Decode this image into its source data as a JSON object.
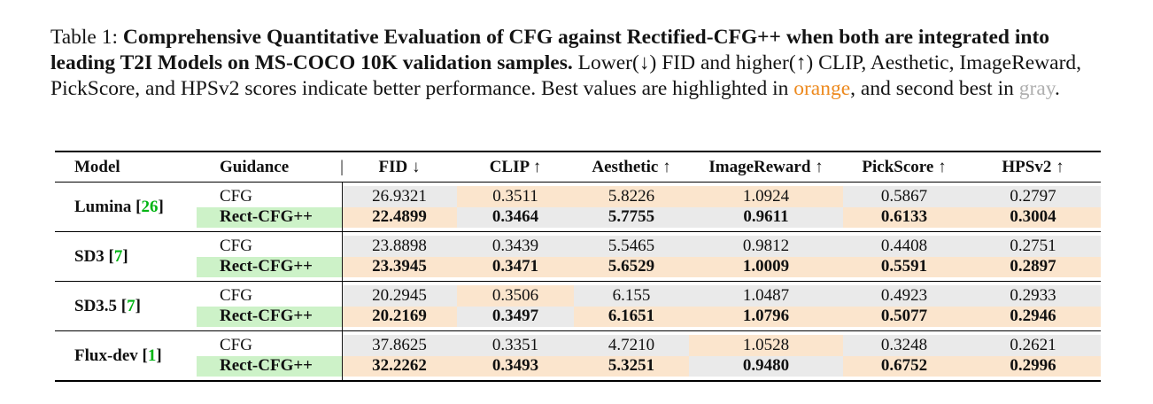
{
  "colors": {
    "best_bg": "#FBE5CD",
    "second_bg": "#EAEAEA",
    "guidance_green": "#CDF2C8",
    "citation_green": "#00B413",
    "caption_orange": "#ED8A1F",
    "caption_gray": "#AFAFAF"
  },
  "caption": {
    "prefix": "Table 1: ",
    "bold_title": "Comprehensive Quantitative Evaluation of CFG against Rectified-CFG++ when both are integrated into leading T2I Models on MS-COCO 10K validation samples.",
    "text_after_bold": " Lower(↓) FID and higher(↑) CLIP, Aesthetic, ImageReward, PickScore, and HPSv2 scores indicate better performance. Best values are highlighted in ",
    "orange_word": "orange",
    "text_mid": ", and second best in ",
    "gray_word": "gray",
    "text_end": "."
  },
  "table": {
    "headers": {
      "model": "Model",
      "guidance": "Guidance",
      "divider": "|",
      "metrics": [
        "FID ↓",
        "CLIP ↑",
        "Aesthetic ↑",
        "ImageReward ↑",
        "PickScore ↑",
        "HPSv2 ↑"
      ]
    },
    "cite_open": "[",
    "cite_close": "]",
    "groups": [
      {
        "model": "Lumina",
        "cite": "26",
        "rows": [
          {
            "guidance": "CFG",
            "values": [
              "26.9321",
              "0.3511",
              "5.8226",
              "1.0924",
              "0.5867",
              "0.2797"
            ],
            "hl": [
              "second",
              "best",
              "best",
              "best",
              "second",
              "second"
            ]
          },
          {
            "guidance": "Rect-CFG++",
            "bg": "green",
            "values": [
              "22.4899",
              "0.3464",
              "5.7755",
              "0.9611",
              "0.6133",
              "0.3004"
            ],
            "hl": [
              "best",
              "second",
              "second",
              "second",
              "best",
              "best"
            ]
          }
        ]
      },
      {
        "model": "SD3",
        "cite": "7",
        "rows": [
          {
            "guidance": "CFG",
            "values": [
              "23.8898",
              "0.3439",
              "5.5465",
              "0.9812",
              "0.4408",
              "0.2751"
            ],
            "hl": [
              "second",
              "second",
              "second",
              "second",
              "second",
              "second"
            ]
          },
          {
            "guidance": "Rect-CFG++",
            "bg": "green",
            "values": [
              "23.3945",
              "0.3471",
              "5.6529",
              "1.0009",
              "0.5591",
              "0.2897"
            ],
            "hl": [
              "best",
              "best",
              "best",
              "best",
              "best",
              "best"
            ]
          }
        ]
      },
      {
        "model": "SD3.5",
        "cite": "7",
        "rows": [
          {
            "guidance": "CFG",
            "values": [
              "20.2945",
              "0.3506",
              "6.155",
              "1.0487",
              "0.4923",
              "0.2933"
            ],
            "hl": [
              "second",
              "best",
              "second",
              "second",
              "second",
              "second"
            ]
          },
          {
            "guidance": "Rect-CFG++",
            "bg": "green",
            "values": [
              "20.2169",
              "0.3497",
              "6.1651",
              "1.0796",
              "0.5077",
              "0.2946"
            ],
            "hl": [
              "best",
              "second",
              "best",
              "best",
              "best",
              "best"
            ]
          }
        ]
      },
      {
        "model": "Flux-dev",
        "cite": "1",
        "rows": [
          {
            "guidance": "CFG",
            "values": [
              "37.8625",
              "0.3351",
              "4.7210",
              "1.0528",
              "0.3248",
              "0.2621"
            ],
            "hl": [
              "second",
              "second",
              "second",
              "best",
              "second",
              "second"
            ]
          },
          {
            "guidance": "Rect-CFG++",
            "bg": "green",
            "values": [
              "32.2262",
              "0.3493",
              "5.3251",
              "0.9480",
              "0.6752",
              "0.2996"
            ],
            "hl": [
              "best",
              "best",
              "best",
              "second",
              "best",
              "best"
            ]
          }
        ]
      }
    ]
  }
}
